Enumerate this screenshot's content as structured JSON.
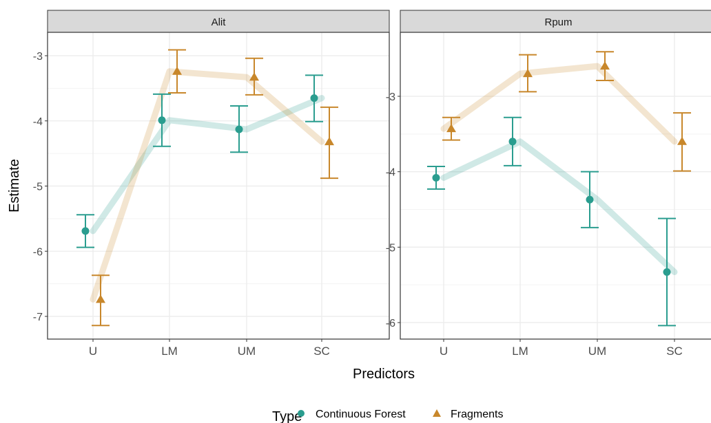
{
  "chart_data": {
    "type": "line",
    "xlabel": "Predictors",
    "ylabel": "Estimate",
    "categories": [
      "U",
      "LM",
      "UM",
      "SC"
    ],
    "legend": {
      "title": "Type",
      "position": "bottom",
      "entries": [
        "Continuous Forest",
        "Fragments"
      ]
    },
    "colors": {
      "Continuous Forest": "#2a9d8f",
      "Fragments": "#c8872b",
      "strip": "#d9d9d9",
      "grid": "#ebebeb"
    },
    "panels": [
      {
        "title": "Alit",
        "ylim": [
          -7.4,
          -2.35
        ],
        "yticks": [
          -3,
          -4,
          -5,
          -6,
          -7
        ],
        "series": [
          {
            "name": "Continuous Forest",
            "marker": "circle",
            "values": [
              -5.69,
              -3.99,
              -4.13,
              -3.65
            ],
            "lower": [
              -5.94,
              -4.39,
              -4.48,
              -4.01
            ],
            "upper": [
              -5.44,
              -3.59,
              -3.77,
              -3.3
            ]
          },
          {
            "name": "Fragments",
            "marker": "triangle",
            "values": [
              -6.74,
              -3.24,
              -3.33,
              -4.32
            ],
            "lower": [
              -7.14,
              -3.57,
              -3.6,
              -4.88
            ],
            "upper": [
              -6.37,
              -2.91,
              -3.04,
              -3.79
            ]
          }
        ]
      },
      {
        "title": "Rpum",
        "ylim": [
          -6.2,
          -2.28
        ],
        "yticks": [
          -3,
          -4,
          -5,
          -6
        ],
        "series": [
          {
            "name": "Continuous Forest",
            "marker": "circle",
            "values": [
              -4.08,
              -3.6,
              -4.37,
              -5.33
            ],
            "lower": [
              -4.23,
              -3.92,
              -4.74,
              -6.04
            ],
            "upper": [
              -3.93,
              -3.28,
              -4.0,
              -4.62
            ]
          },
          {
            "name": "Fragments",
            "marker": "triangle",
            "values": [
              -3.43,
              -2.7,
              -2.6,
              -3.6
            ],
            "lower": [
              -3.58,
              -2.94,
              -2.79,
              -3.99
            ],
            "upper": [
              -3.28,
              -2.45,
              -2.41,
              -3.22
            ]
          }
        ]
      }
    ]
  }
}
